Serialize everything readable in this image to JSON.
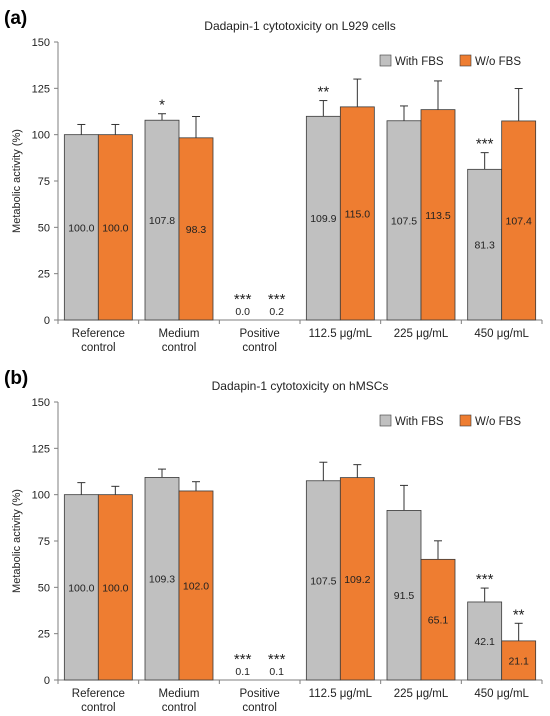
{
  "colors": {
    "with_fbs": "#c0c0c0",
    "wo_fbs": "#ee7d31",
    "edge": "#3a3a3a",
    "axis": "#7f7f7f"
  },
  "chart_data": [
    {
      "type": "bar",
      "panel": "(a)",
      "title": "Dadapin-1 cytotoxicity on L929 cells",
      "xlabel": "",
      "ylabel": "Metabolic activity (%)",
      "ylim": [
        0,
        150
      ],
      "yticks": [
        0,
        25,
        50,
        75,
        100,
        125,
        150
      ],
      "grid": false,
      "legend": "top-right",
      "categories": [
        [
          "Reference",
          "control"
        ],
        [
          "Medium",
          "control"
        ],
        [
          "Positive",
          "control"
        ],
        [
          "112.5 μg/mL"
        ],
        [
          "225 μg/mL"
        ],
        [
          "450 μg/mL"
        ]
      ],
      "series": [
        {
          "name": "With FBS",
          "values": [
            100.0,
            107.8,
            0.0,
            109.9,
            107.5,
            81.3
          ],
          "labels": [
            "100.0",
            "107.8",
            "0.0",
            "109.9",
            "107.5",
            "81.3"
          ],
          "errors": [
            5.5,
            3.5,
            0,
            8.5,
            8,
            9
          ],
          "significance": [
            "",
            "*",
            "***",
            "**",
            "",
            "***"
          ]
        },
        {
          "name": "W/o FBS",
          "values": [
            100.0,
            98.3,
            0.2,
            115.0,
            113.5,
            107.4
          ],
          "labels": [
            "100.0",
            "98.3",
            "0.2",
            "115.0",
            "113.5",
            "107.4"
          ],
          "errors": [
            5.5,
            11.5,
            0,
            15,
            15.5,
            17.5
          ],
          "significance": [
            "",
            "",
            "***",
            "",
            "",
            ""
          ]
        }
      ]
    },
    {
      "type": "bar",
      "panel": "(b)",
      "title": "Dadapin-1 cytotoxicity on hMSCs",
      "xlabel": "",
      "ylabel": "Metabolic activity (%)",
      "ylim": [
        0,
        150
      ],
      "yticks": [
        0,
        25,
        50,
        75,
        100,
        125,
        150
      ],
      "grid": false,
      "legend": "top-right",
      "categories": [
        [
          "Reference",
          "control"
        ],
        [
          "Medium",
          "control"
        ],
        [
          "Positive",
          "control"
        ],
        [
          "112.5 μg/mL"
        ],
        [
          "225 μg/mL"
        ],
        [
          "450 μg/mL"
        ]
      ],
      "series": [
        {
          "name": "With FBS",
          "values": [
            100.0,
            109.3,
            0.1,
            107.5,
            91.5,
            42.1
          ],
          "labels": [
            "100.0",
            "109.3",
            "0.1",
            "107.5",
            "91.5",
            "42.1"
          ],
          "errors": [
            6.5,
            4.5,
            0,
            10,
            13.5,
            7.5
          ],
          "significance": [
            "",
            "",
            "***",
            "",
            "",
            "***"
          ]
        },
        {
          "name": "W/o FBS",
          "values": [
            100.0,
            102.0,
            0.1,
            109.2,
            65.1,
            21.1
          ],
          "labels": [
            "100.0",
            "102.0",
            "0.1",
            "109.2",
            "65.1",
            "21.1"
          ],
          "errors": [
            4.5,
            5,
            0,
            7,
            10,
            9.5
          ],
          "significance": [
            "",
            "",
            "***",
            "",
            "",
            "**"
          ]
        }
      ]
    }
  ]
}
